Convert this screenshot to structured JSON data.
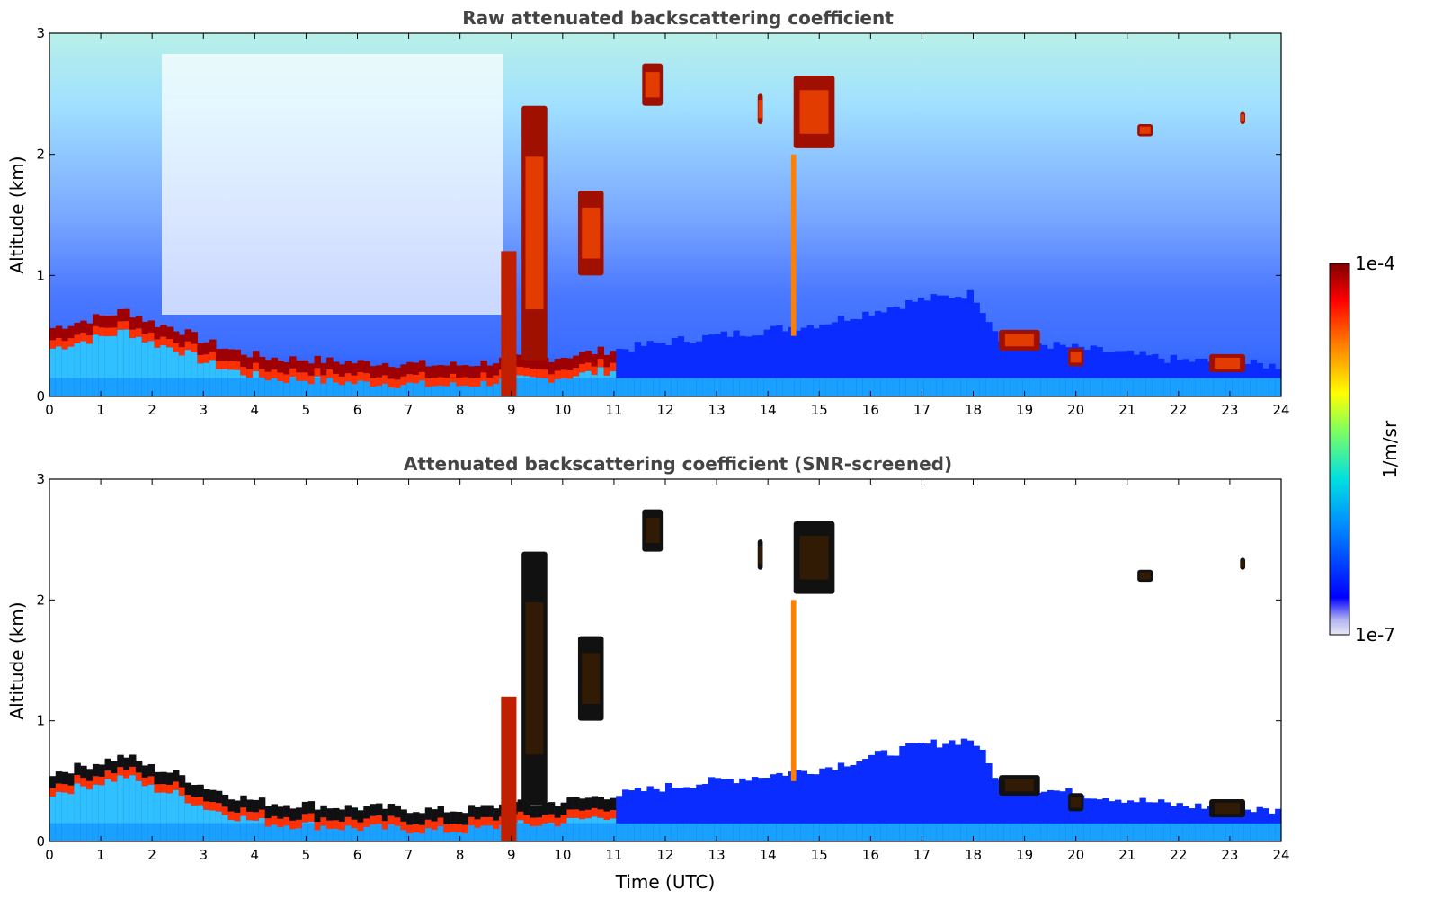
{
  "chart_data": [
    {
      "type": "heatmap",
      "title": "Raw attenuated backscattering coefficient",
      "xlabel": "",
      "ylabel": "Altitude (km)",
      "xlim": [
        0,
        24
      ],
      "ylim": [
        0,
        3
      ],
      "x_ticks": [
        "0",
        "1",
        "2",
        "3",
        "4",
        "5",
        "6",
        "7",
        "8",
        "9",
        "10",
        "11",
        "12",
        "13",
        "14",
        "15",
        "16",
        "17",
        "18",
        "19",
        "20",
        "21",
        "22",
        "23",
        "24"
      ],
      "y_ticks": [
        "0",
        "1",
        "2",
        "3"
      ],
      "grid": false,
      "boundary_layer_top_km": [
        [
          0,
          0.55
        ],
        [
          0.5,
          0.6
        ],
        [
          1,
          0.65
        ],
        [
          1.5,
          0.7
        ],
        [
          2,
          0.6
        ],
        [
          2.5,
          0.55
        ],
        [
          3,
          0.45
        ],
        [
          3.5,
          0.38
        ],
        [
          4,
          0.33
        ],
        [
          4.5,
          0.3
        ],
        [
          5,
          0.3
        ],
        [
          5.5,
          0.28
        ],
        [
          6,
          0.27
        ],
        [
          6.5,
          0.27
        ],
        [
          7,
          0.26
        ],
        [
          7.5,
          0.25
        ],
        [
          8,
          0.25
        ],
        [
          8.5,
          0.27
        ],
        [
          9,
          0.3
        ],
        [
          9.5,
          0.3
        ],
        [
          10,
          0.32
        ],
        [
          10.5,
          0.35
        ],
        [
          11,
          0.38
        ],
        [
          12,
          0.45
        ],
        [
          13,
          0.5
        ],
        [
          14,
          0.55
        ],
        [
          15,
          0.6
        ],
        [
          16,
          0.7
        ],
        [
          17,
          0.8
        ],
        [
          18,
          0.85
        ],
        [
          18.5,
          0.5
        ],
        [
          19,
          0.45
        ],
        [
          20,
          0.4
        ],
        [
          21,
          0.35
        ],
        [
          22,
          0.3
        ],
        [
          23,
          0.28
        ],
        [
          24,
          0.25
        ]
      ],
      "clouds": [
        {
          "t0": 11.55,
          "t1": 11.95,
          "z0": 2.4,
          "z1": 2.75
        },
        {
          "t0": 13.8,
          "t1": 13.9,
          "z0": 2.25,
          "z1": 2.5
        },
        {
          "t0": 14.5,
          "t1": 15.3,
          "z0": 2.05,
          "z1": 2.65
        },
        {
          "t0": 21.2,
          "t1": 21.5,
          "z0": 2.15,
          "z1": 2.25
        },
        {
          "t0": 23.2,
          "t1": 23.3,
          "z0": 2.25,
          "z1": 2.35
        },
        {
          "t0": 18.5,
          "t1": 19.3,
          "z0": 0.38,
          "z1": 0.55
        },
        {
          "t0": 19.85,
          "t1": 20.15,
          "z0": 0.25,
          "z1": 0.4
        },
        {
          "t0": 22.6,
          "t1": 23.3,
          "z0": 0.2,
          "z1": 0.35
        },
        {
          "t0": 9.2,
          "t1": 9.7,
          "z0": 0.3,
          "z1": 2.4
        },
        {
          "t0": 10.3,
          "t1": 10.8,
          "z0": 1.0,
          "z1": 1.7
        }
      ]
    },
    {
      "type": "heatmap",
      "title": "Attenuated backscattering coefficient (SNR-screened)",
      "xlabel": "Time (UTC)",
      "ylabel": "Altitude (km)",
      "xlim": [
        0,
        24
      ],
      "ylim": [
        0,
        3
      ],
      "x_ticks": [
        "0",
        "1",
        "2",
        "3",
        "4",
        "5",
        "6",
        "7",
        "8",
        "9",
        "10",
        "11",
        "12",
        "13",
        "14",
        "15",
        "16",
        "17",
        "18",
        "19",
        "20",
        "21",
        "22",
        "23",
        "24"
      ],
      "y_ticks": [
        "0",
        "1",
        "2",
        "3"
      ],
      "grid": false
    }
  ],
  "colorbar": {
    "label": "1/m/sr",
    "min_label": "1e-7",
    "max_label": "1e-4",
    "scale": "log",
    "colormap": [
      "#e8e8f8",
      "#0000ff",
      "#00c8ff",
      "#00ff80",
      "#ffff00",
      "#ff8000",
      "#ff0000",
      "#800000"
    ]
  }
}
